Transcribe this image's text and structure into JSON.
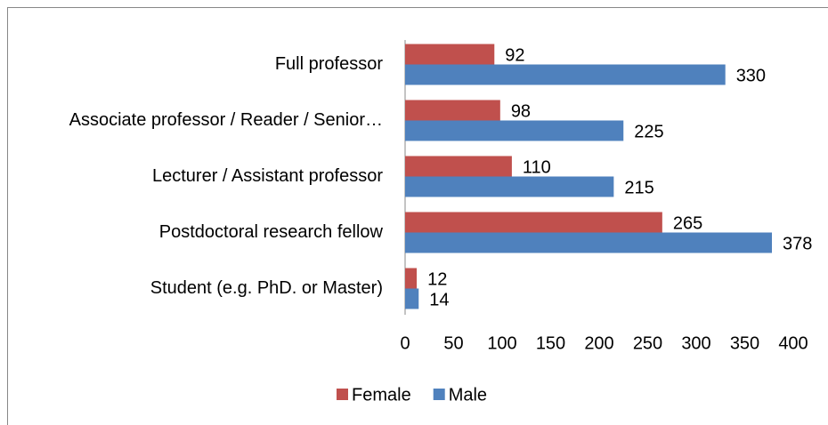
{
  "chart_data": {
    "type": "bar",
    "orientation": "horizontal",
    "categories": [
      "Full professor",
      "Associate professor / Reader / Senior…",
      "Lecturer / Assistant professor",
      "Postdoctoral research fellow",
      "Student (e.g. PhD. or Master)"
    ],
    "series": [
      {
        "name": "Female",
        "color": "#c0504d",
        "values": [
          92,
          98,
          110,
          265,
          12
        ]
      },
      {
        "name": "Male",
        "color": "#4f81bd",
        "values": [
          330,
          225,
          215,
          378,
          14
        ]
      }
    ],
    "xlim": [
      0,
      400
    ],
    "xticks": [
      0,
      50,
      100,
      150,
      200,
      250,
      300,
      350,
      400
    ],
    "grid": false,
    "legend": "bottom"
  }
}
